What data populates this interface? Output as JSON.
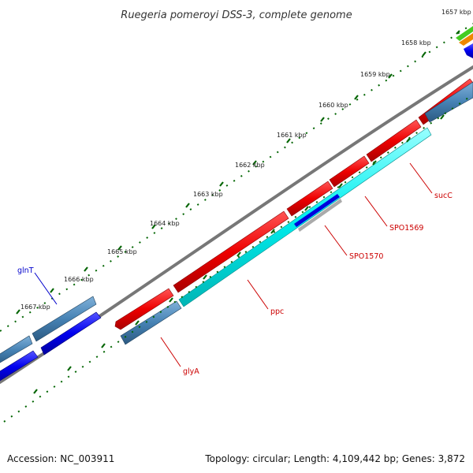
{
  "title": "Ruegeria pomeroyi DSS-3, complete genome",
  "footer": {
    "accession": "Accession: NC_003911",
    "summary": "Topology: circular; Length: 4,109,442 bp; Genes: 3,872"
  },
  "ticks": [
    "1657 kbp",
    "1658 kbp",
    "1659 kbp",
    "1660 kbp",
    "1661 kbp",
    "1662 kbp",
    "1663 kbp",
    "1664 kbp",
    "1665 kbp",
    "1666 kbp",
    "1667 kbp"
  ],
  "gene_labels": {
    "glnT": "glnT",
    "sucC": "sucC",
    "SPO1569": "SPO1569",
    "SPO1570": "SPO1570",
    "ppc": "ppc",
    "glyA": "glyA"
  },
  "colors": {
    "red_track": "#ee0000",
    "cyan_track": "#00eeee",
    "steelblue_track": "#4682b4",
    "blue_track": "#0000ee",
    "backbone": "#777777",
    "tick_marks": "#006400",
    "red_label": "#cc0000",
    "blue_label": "#0000cc"
  }
}
